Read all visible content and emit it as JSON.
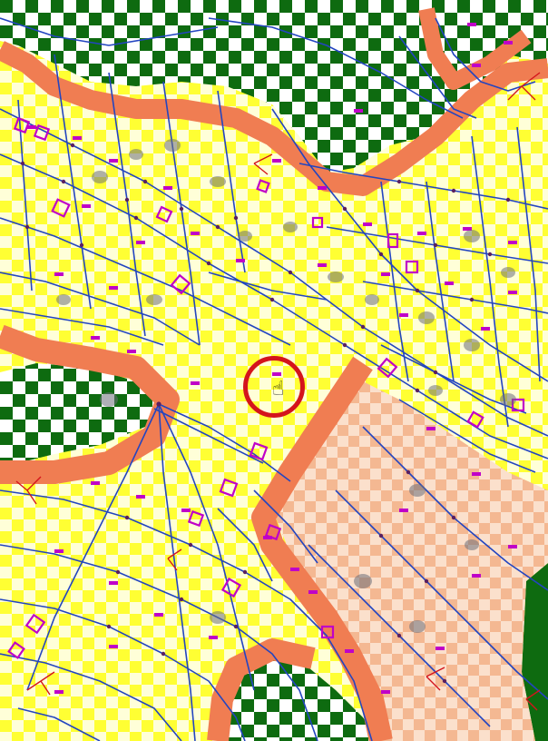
{
  "map": {
    "watermark_text": "",
    "colors": {
      "developed_yellow": "#ffff33",
      "forest_green": "#0e6b10",
      "orange_buffer": "#f07d52",
      "peach_zone": "#f8c8a6",
      "parcel_line_blue": "#2345c0",
      "label_magenta": "#c000c8",
      "cursor_ring_red": "#d4141c"
    },
    "cursor": {
      "icon": "hand-cursor-icon",
      "glyph": "☝"
    }
  }
}
